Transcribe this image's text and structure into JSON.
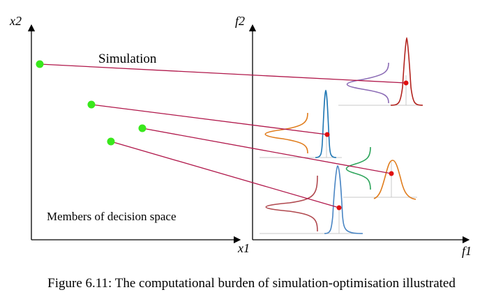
{
  "labels": {
    "x2": "x2",
    "x1": "x1",
    "f2": "f2",
    "f1": "f1",
    "simulation": "Simulation",
    "decision_space": "Members of decision space"
  },
  "caption": "Figure 6.11: The computational burden of simulation-optimisation illustrated",
  "colors": {
    "axis": "#000000",
    "link": "#b0174a",
    "member_point": "#39e81c",
    "objective_point": "#e01010",
    "guide": "#c8c8c8",
    "dist_red": "#b2231e",
    "dist_purple": "#8b6bb5",
    "dist_blue": "#1f77b4",
    "dist_orange": "#e07b1a",
    "dist_green": "#2ca45a",
    "dist_steelblue": "#4a86c4",
    "dist_darkred": "#b0484e"
  }
}
